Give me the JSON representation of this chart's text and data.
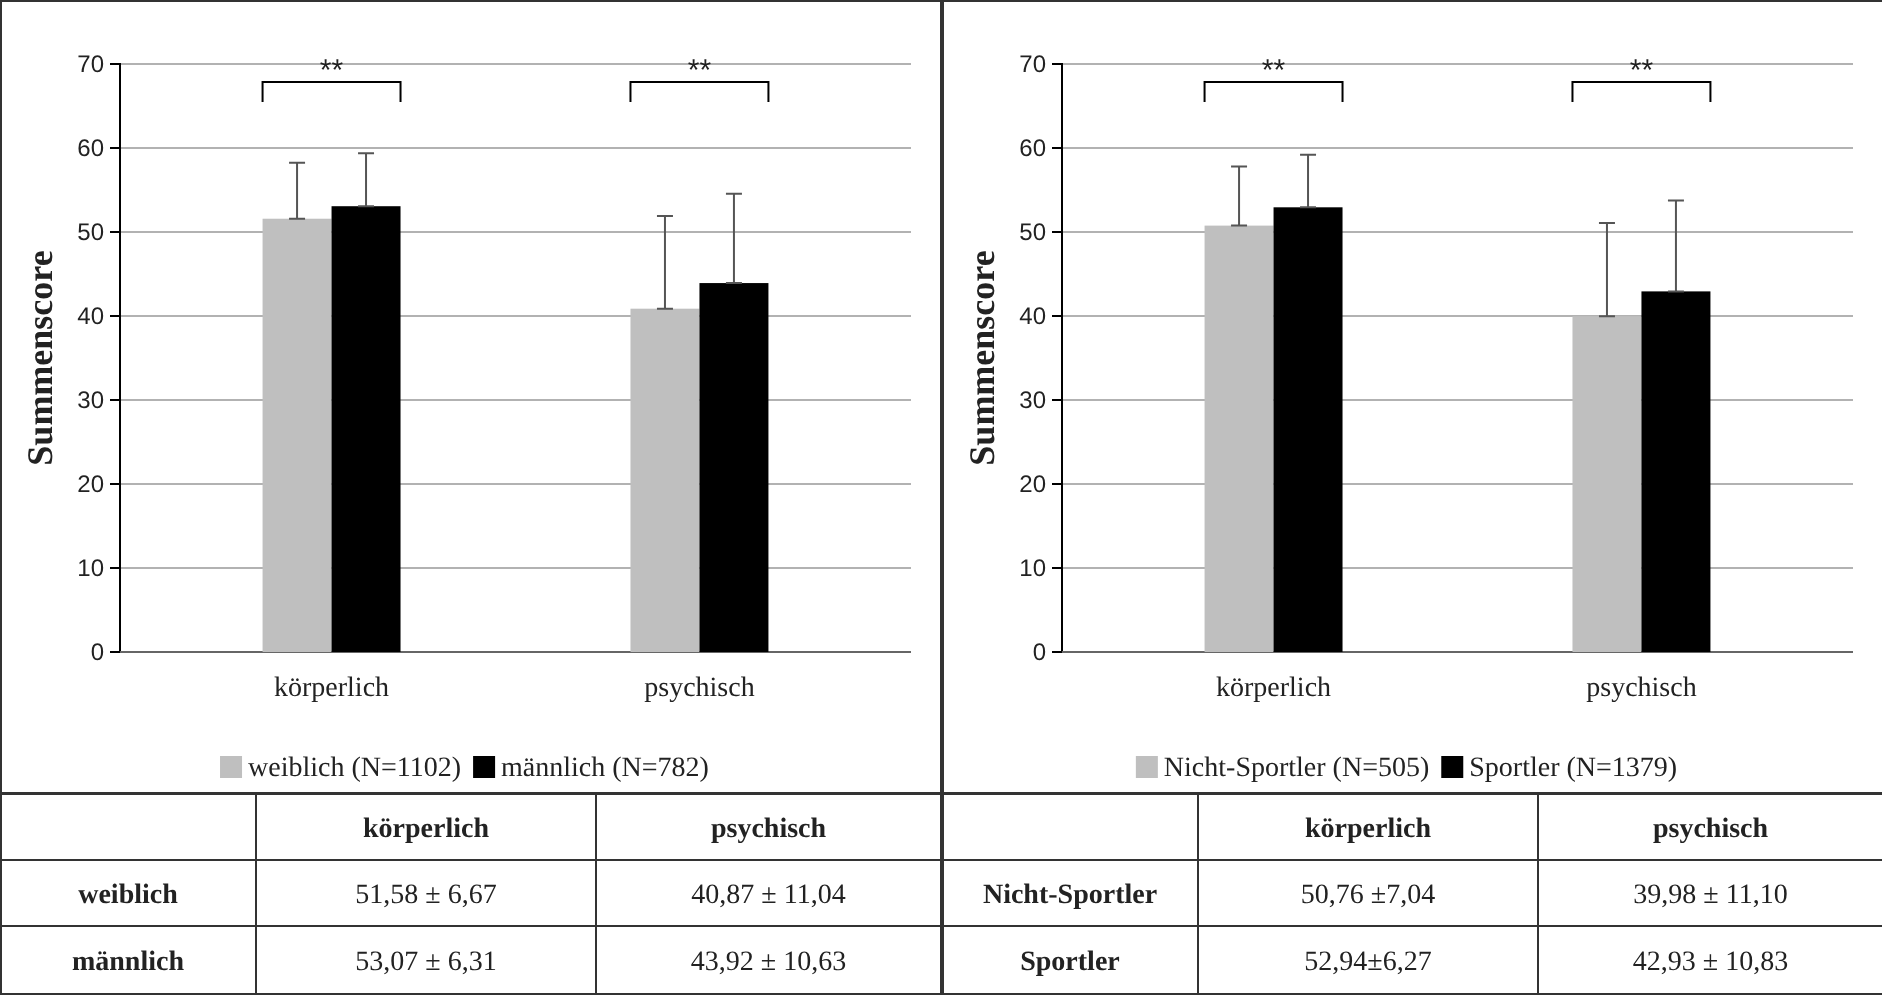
{
  "chart_data": [
    {
      "type": "bar",
      "categories": [
        "körperlich",
        "psychisch"
      ],
      "ylabel": "Summenscore",
      "ylim": [
        0,
        70
      ],
      "yticks": [
        0,
        10,
        20,
        30,
        40,
        50,
        60,
        70
      ],
      "grid": "y",
      "legend": "bottom",
      "series": [
        {
          "name": "weiblich (N=1102)",
          "color": "#bfbfbf",
          "values": [
            51.58,
            40.87
          ],
          "errors": [
            [
              51.58,
              58.25
            ],
            [
              40.87,
              51.91
            ]
          ],
          "value_labels": [
            "51,58 ± 6,67",
            "40,87 ± 11,04"
          ]
        },
        {
          "name": "männlich (N=782)",
          "color": "#000000",
          "values": [
            53.07,
            43.92
          ],
          "errors": [
            [
              53.07,
              59.38
            ],
            [
              43.92,
              54.55
            ]
          ],
          "value_labels": [
            "53,07 ± 6,31",
            "43,92 ± 10,63"
          ]
        }
      ],
      "annotations": [
        "**",
        "**",
        "weiblich",
        "männlich"
      ]
    },
    {
      "type": "bar",
      "categories": [
        "körperlich",
        "psychisch"
      ],
      "ylabel": "Summenscore",
      "ylim": [
        0,
        70
      ],
      "yticks": [
        0,
        10,
        20,
        30,
        40,
        50,
        60,
        70
      ],
      "grid": "y",
      "legend": "bottom",
      "series": [
        {
          "name": "Nicht-Sportler (N=505)",
          "color": "#bfbfbf",
          "values": [
            50.76,
            39.98
          ],
          "errors": [
            [
              50.76,
              57.8
            ],
            [
              39.98,
              51.08
            ]
          ],
          "value_labels": [
            "50,76 ±7,04",
            "39,98 ± 11,10"
          ]
        },
        {
          "name": "Sportler (N=1379)",
          "color": "#000000",
          "values": [
            52.94,
            42.93
          ],
          "errors": [
            [
              52.94,
              59.21
            ],
            [
              42.93,
              53.76
            ]
          ],
          "value_labels": [
            "52,94±6,27",
            "42,93 ± 10,83"
          ]
        }
      ],
      "annotations": [
        "**",
        "**",
        "Nicht-Sportler",
        "Sportler"
      ]
    }
  ]
}
